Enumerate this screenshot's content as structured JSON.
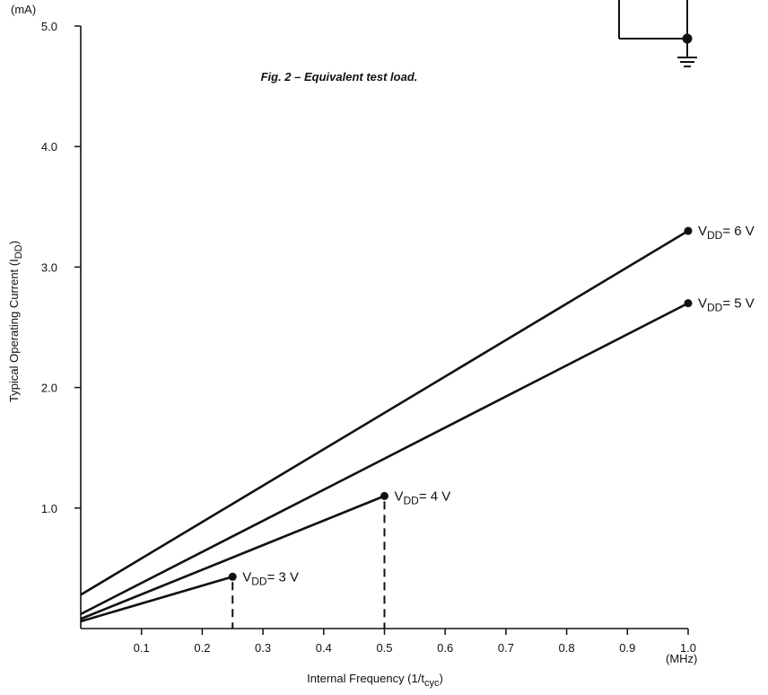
{
  "caption": "Fig. 2 – Equivalent test load.",
  "chart_data": {
    "type": "line",
    "title": "",
    "xlabel": {
      "text": "Internal Frequency (1/t",
      "sub": "cyc",
      "end": ")"
    },
    "ylabel": {
      "text": "Typical Operating Current (I",
      "sub": "DD",
      "end": ")"
    },
    "x_unit": "(MHz)",
    "y_unit": "(mA)",
    "xlim": [
      0,
      1.0
    ],
    "ylim": [
      0,
      5.0
    ],
    "x_ticks": [
      0.1,
      0.2,
      0.3,
      0.4,
      0.5,
      0.6,
      0.7,
      0.8,
      0.9,
      1.0
    ],
    "x_tick_labels": [
      "0.1",
      "0.2",
      "0.3",
      "0.4",
      "0.5",
      "0.6",
      "0.7",
      "0.8",
      "0.9",
      "1.0"
    ],
    "y_ticks": [
      1.0,
      2.0,
      3.0,
      4.0,
      5.0
    ],
    "y_tick_labels": [
      "1.0",
      "2.0",
      "3.0",
      "4.0",
      "5.0"
    ],
    "grid": false,
    "legend": "none",
    "line_color": "#111111",
    "series": [
      {
        "label_main": "V",
        "label_sub": "DD",
        "label_rest": "= 6 V",
        "x": [
          0,
          1.0
        ],
        "y": [
          0.28,
          3.3
        ]
      },
      {
        "label_main": "V",
        "label_sub": "DD",
        "label_rest": "= 5 V",
        "x": [
          0,
          1.0
        ],
        "y": [
          0.12,
          2.7
        ]
      },
      {
        "label_main": "V",
        "label_sub": "DD",
        "label_rest": "= 4 V",
        "x": [
          0,
          0.5
        ],
        "y": [
          0.08,
          1.1
        ]
      },
      {
        "label_main": "V",
        "label_sub": "DD",
        "label_rest": "= 3 V",
        "x": [
          0,
          0.25
        ],
        "y": [
          0.06,
          0.43
        ]
      }
    ],
    "dashed_drop_lines": [
      0.25,
      0.5
    ]
  }
}
